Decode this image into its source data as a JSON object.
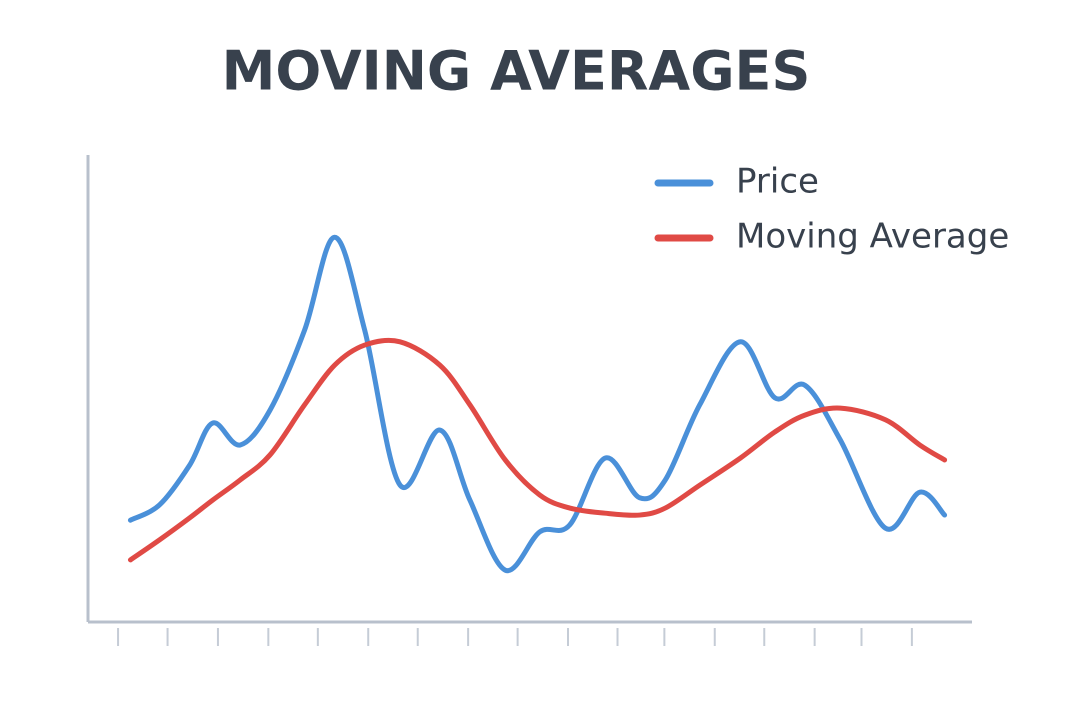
{
  "chart_data": {
    "type": "line",
    "title": "MOVING AVERAGES",
    "x": [
      4.8,
      8.1,
      11.5,
      14.1,
      17.2,
      20.6,
      24.5,
      27.9,
      31.3,
      35.3,
      39.8,
      43.2,
      47.2,
      51.1,
      54.5,
      58.5,
      62.4,
      65.3,
      69.2,
      73.8,
      77.7,
      81.1,
      85.1,
      90.2,
      94.1,
      96.9
    ],
    "series": [
      {
        "name": "Price",
        "color": "#4a90d9",
        "values": [
          21.8,
          25.1,
          33.6,
          42.6,
          37.9,
          45.4,
          62.5,
          82.4,
          62.5,
          29.3,
          41.1,
          26.1,
          11.1,
          19.3,
          20.8,
          35.1,
          26.6,
          30.4,
          46.5,
          60.0,
          48.0,
          50.7,
          39.0,
          20.1,
          27.8,
          22.9
        ]
      },
      {
        "name": "Moving Average",
        "color": "#e04a45",
        "values": [
          13.3,
          17.6,
          22.3,
          26.1,
          30.4,
          35.8,
          46.5,
          55.0,
          59.3,
          60.0,
          55.0,
          46.5,
          34.7,
          27.2,
          24.4,
          23.3,
          22.9,
          24.4,
          29.3,
          35.1,
          40.7,
          44.3,
          45.8,
          43.3,
          37.9,
          34.7
        ]
      }
    ],
    "xlim": [
      0,
      100
    ],
    "ylim": [
      0,
      100
    ],
    "xticks": [
      3.4,
      9.0,
      14.7,
      20.4,
      26.0,
      31.7,
      37.3,
      43.0,
      48.6,
      54.3,
      59.9,
      65.2,
      70.9,
      76.5,
      82.2,
      87.5,
      93.2
    ],
    "legend": "top-right"
  }
}
